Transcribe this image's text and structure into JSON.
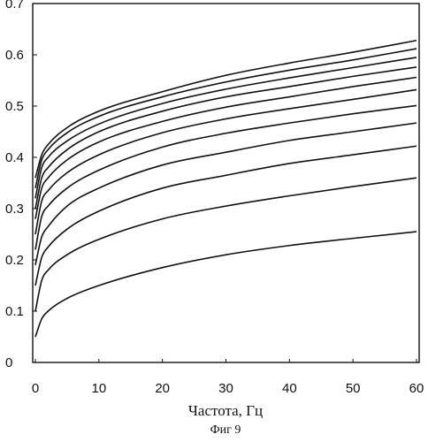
{
  "chart_data": {
    "type": "line",
    "title": "",
    "xlabel": "Частота,  Гц",
    "ylabel": "",
    "caption": "Фиг 9",
    "xlim": [
      0,
      60
    ],
    "ylim": [
      0,
      0.7
    ],
    "x_ticks": [
      "0",
      "10",
      "20",
      "30",
      "40",
      "50",
      "60"
    ],
    "y_ticks": [
      "0",
      "0.1",
      "0.2",
      "0.3",
      "0.4",
      "0.5",
      "0.6",
      "0.7"
    ],
    "grid": false,
    "x": [
      0,
      1,
      2,
      5,
      10,
      20,
      30,
      40,
      50,
      60
    ],
    "series": [
      {
        "values": [
          0.05,
          0.085,
          0.1,
          0.125,
          0.15,
          0.185,
          0.21,
          0.228,
          0.242,
          0.255
        ]
      },
      {
        "values": [
          0.1,
          0.16,
          0.18,
          0.21,
          0.24,
          0.28,
          0.305,
          0.325,
          0.343,
          0.36
        ]
      },
      {
        "values": [
          0.15,
          0.205,
          0.225,
          0.26,
          0.295,
          0.34,
          0.365,
          0.388,
          0.405,
          0.422
        ]
      },
      {
        "values": [
          0.19,
          0.245,
          0.265,
          0.305,
          0.34,
          0.385,
          0.41,
          0.433,
          0.45,
          0.467
        ]
      },
      {
        "values": [
          0.22,
          0.285,
          0.305,
          0.34,
          0.375,
          0.42,
          0.447,
          0.467,
          0.485,
          0.501
        ]
      },
      {
        "values": [
          0.25,
          0.315,
          0.335,
          0.37,
          0.405,
          0.448,
          0.475,
          0.495,
          0.513,
          0.532
        ]
      },
      {
        "values": [
          0.28,
          0.34,
          0.36,
          0.395,
          0.43,
          0.47,
          0.498,
          0.518,
          0.538,
          0.556
        ]
      },
      {
        "values": [
          0.3,
          0.36,
          0.38,
          0.415,
          0.45,
          0.49,
          0.518,
          0.538,
          0.558,
          0.576
        ]
      },
      {
        "values": [
          0.32,
          0.38,
          0.4,
          0.432,
          0.465,
          0.505,
          0.533,
          0.555,
          0.575,
          0.595
        ]
      },
      {
        "values": [
          0.34,
          0.395,
          0.415,
          0.448,
          0.48,
          0.518,
          0.547,
          0.57,
          0.59,
          0.612
        ]
      },
      {
        "values": [
          0.36,
          0.405,
          0.425,
          0.458,
          0.49,
          0.528,
          0.56,
          0.584,
          0.605,
          0.628
        ]
      }
    ]
  }
}
